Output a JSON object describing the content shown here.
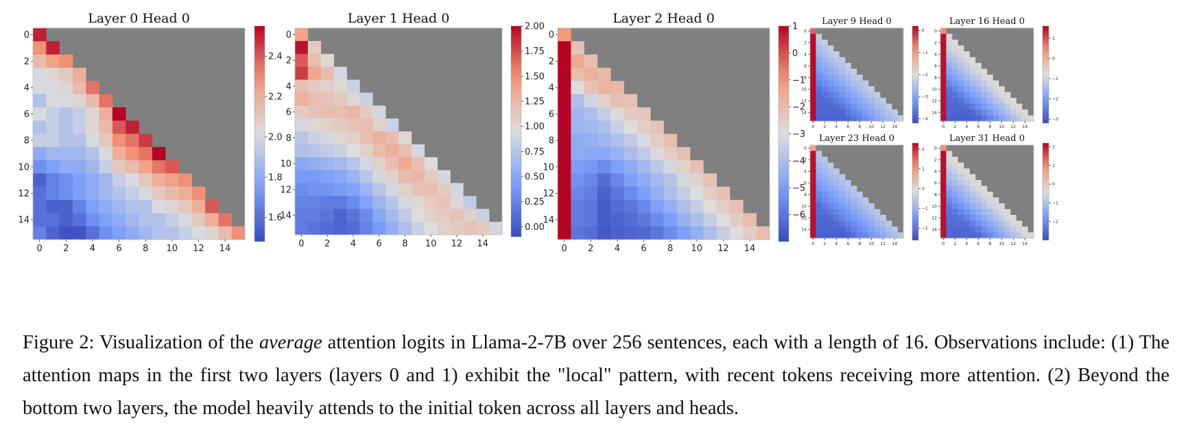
{
  "figure": {
    "caption_prefix": "Figure 2: Visualization of the ",
    "caption_emph": "average",
    "caption_rest": " attention logits in Llama-2-7B over 256 sentences, each with a length of 16. Observations include: (1) The attention maps in the first two layers (layers 0 and 1) exhibit the \"local\" pattern, with recent tokens receiving more attention. (2) Beyond the bottom two layers, the model heavily attends to the initial token across all layers and heads."
  },
  "chart_data": [
    {
      "type": "heatmap",
      "title": "Layer 0 Head 0",
      "x_ticks": [
        "0",
        "2",
        "4",
        "6",
        "8",
        "10",
        "12",
        "14"
      ],
      "y_ticks": [
        "0",
        "2",
        "4",
        "6",
        "8",
        "10",
        "12",
        "14"
      ],
      "colorbar": {
        "min": 1.48,
        "max": 2.55,
        "ticks": [
          1.6,
          1.8,
          2.0,
          2.2,
          2.4
        ],
        "tick_labels": [
          "1.6",
          "1.8",
          "2.0",
          "2.2",
          "2.4"
        ]
      },
      "masked_color": "#808080",
      "values": [
        [
          2.5
        ],
        [
          2.3,
          2.5
        ],
        [
          2.15,
          2.25,
          2.3
        ],
        [
          2.0,
          2.05,
          2.1,
          2.2
        ],
        [
          2.0,
          2.0,
          2.05,
          2.15,
          2.35
        ],
        [
          1.9,
          2.0,
          2.0,
          2.05,
          2.15,
          2.35
        ],
        [
          2.0,
          1.95,
          1.9,
          1.95,
          2.05,
          2.2,
          2.55
        ],
        [
          1.9,
          1.95,
          1.9,
          1.95,
          2.05,
          2.15,
          2.4,
          2.5
        ],
        [
          1.95,
          1.95,
          1.9,
          1.9,
          2.0,
          2.1,
          2.3,
          2.35,
          2.45
        ],
        [
          1.8,
          1.85,
          1.85,
          1.85,
          1.9,
          2.0,
          2.2,
          2.3,
          2.35,
          2.55
        ],
        [
          1.7,
          1.75,
          1.8,
          1.8,
          1.85,
          1.95,
          2.1,
          2.15,
          2.25,
          2.35,
          2.4
        ],
        [
          1.55,
          1.65,
          1.7,
          1.75,
          1.8,
          1.85,
          1.95,
          2.0,
          2.1,
          2.2,
          2.25,
          2.3
        ],
        [
          1.6,
          1.65,
          1.7,
          1.75,
          1.8,
          1.85,
          1.9,
          1.95,
          2.0,
          2.1,
          2.15,
          2.2,
          2.3
        ],
        [
          1.6,
          1.55,
          1.55,
          1.65,
          1.75,
          1.8,
          1.85,
          1.9,
          1.9,
          2.0,
          2.05,
          2.1,
          2.2,
          2.4
        ],
        [
          1.6,
          1.6,
          1.55,
          1.6,
          1.7,
          1.75,
          1.8,
          1.85,
          1.9,
          1.9,
          1.95,
          2.0,
          2.1,
          2.2,
          2.35
        ],
        [
          1.65,
          1.55,
          1.5,
          1.5,
          1.6,
          1.7,
          1.75,
          1.8,
          1.85,
          1.9,
          1.9,
          1.95,
          2.0,
          2.05,
          2.15,
          2.3
        ]
      ]
    },
    {
      "type": "heatmap",
      "title": "Layer 1 Head 0",
      "x_ticks": [
        "0",
        "2",
        "4",
        "6",
        "8",
        "10",
        "12",
        "14"
      ],
      "y_ticks": [
        "0",
        "2",
        "4",
        "6",
        "8",
        "10",
        "12",
        "14"
      ],
      "colorbar": {
        "min": -0.1,
        "max": 2.0,
        "ticks": [
          0.0,
          0.25,
          0.5,
          0.75,
          1.0,
          1.25,
          1.5,
          1.75,
          2.0
        ],
        "tick_labels": [
          "0.00",
          "0.25",
          "0.50",
          "0.75",
          "1.00",
          "1.25",
          "1.50",
          "1.75",
          "2.00"
        ]
      },
      "masked_color": "#808080",
      "values": [
        [
          1.4
        ],
        [
          1.95,
          1.1
        ],
        [
          1.7,
          1.2,
          1.0
        ],
        [
          1.8,
          1.4,
          1.2,
          0.9
        ],
        [
          1.2,
          1.1,
          1.05,
          1.0,
          0.85
        ],
        [
          1.3,
          1.2,
          1.15,
          1.1,
          1.0,
          0.85
        ],
        [
          1.1,
          1.15,
          1.2,
          1.2,
          1.25,
          1.1,
          0.9
        ],
        [
          0.9,
          1.0,
          1.05,
          1.1,
          1.15,
          1.2,
          1.05,
          0.85
        ],
        [
          0.75,
          0.85,
          0.9,
          1.0,
          1.05,
          1.2,
          1.3,
          1.2,
          1.0
        ],
        [
          0.7,
          0.75,
          0.8,
          0.85,
          0.95,
          1.05,
          1.2,
          1.3,
          1.2,
          0.9
        ],
        [
          0.5,
          0.55,
          0.6,
          0.65,
          0.75,
          0.9,
          1.05,
          1.2,
          1.35,
          1.2,
          0.95
        ],
        [
          0.4,
          0.4,
          0.45,
          0.5,
          0.6,
          0.75,
          0.9,
          1.05,
          1.2,
          1.25,
          1.1,
          0.9
        ],
        [
          0.3,
          0.35,
          0.35,
          0.4,
          0.45,
          0.6,
          0.75,
          0.9,
          1.05,
          1.15,
          1.2,
          1.1,
          0.9
        ],
        [
          0.25,
          0.25,
          0.2,
          0.2,
          0.3,
          0.45,
          0.6,
          0.75,
          0.9,
          1.0,
          1.1,
          1.15,
          1.0,
          0.8
        ],
        [
          0.2,
          0.2,
          0.15,
          0.05,
          0.15,
          0.3,
          0.5,
          0.65,
          0.8,
          0.95,
          1.05,
          1.1,
          1.15,
          1.05,
          0.85
        ],
        [
          0.2,
          0.15,
          0.1,
          0.05,
          0.1,
          0.25,
          0.4,
          0.55,
          0.7,
          0.85,
          0.95,
          1.05,
          1.1,
          1.15,
          1.1,
          0.9
        ]
      ]
    },
    {
      "type": "heatmap",
      "title": "Layer 2 Head 0",
      "x_ticks": [
        "0",
        "2",
        "4",
        "6",
        "8",
        "10",
        "12",
        "14"
      ],
      "y_ticks": [
        "0",
        "2",
        "4",
        "6",
        "8",
        "10",
        "12",
        "14"
      ],
      "colorbar": {
        "min": -7.0,
        "max": 1.0,
        "ticks": [
          1,
          0,
          -1,
          -2,
          -3,
          -4,
          -5,
          -6
        ],
        "tick_labels": [
          "1",
          "0",
          "−1",
          "−2",
          "−3",
          "−4",
          "−5",
          "−6"
        ]
      },
      "masked_color": "#808080",
      "values": [
        [
          -1.0
        ],
        [
          1.0,
          -2.2
        ],
        [
          1.0,
          -1.5,
          -2.0
        ],
        [
          1.0,
          -2.0,
          -1.7,
          -1.9
        ],
        [
          1.0,
          -3.0,
          -2.2,
          -1.8,
          -1.9
        ],
        [
          1.0,
          -4.0,
          -3.3,
          -2.6,
          -2.1,
          -2.2
        ],
        [
          1.0,
          -4.3,
          -4.0,
          -3.5,
          -2.9,
          -2.4,
          -2.3
        ],
        [
          1.0,
          -4.3,
          -4.2,
          -4.0,
          -3.5,
          -3.0,
          -2.5,
          -2.2
        ],
        [
          1.0,
          -4.6,
          -4.5,
          -4.3,
          -4.0,
          -3.6,
          -3.1,
          -2.5,
          -2.0
        ],
        [
          1.0,
          -4.6,
          -4.7,
          -4.7,
          -4.4,
          -4.0,
          -3.6,
          -3.1,
          -2.5,
          -2.1
        ],
        [
          1.0,
          -5.0,
          -5.2,
          -5.5,
          -5.0,
          -4.6,
          -4.2,
          -3.7,
          -3.2,
          -2.6,
          -2.1
        ],
        [
          1.0,
          -5.3,
          -5.6,
          -6.2,
          -5.6,
          -5.0,
          -4.6,
          -4.2,
          -3.8,
          -3.2,
          -2.7,
          -2.2
        ],
        [
          1.0,
          -5.6,
          -5.8,
          -6.5,
          -6.0,
          -5.5,
          -5.0,
          -4.5,
          -4.0,
          -3.5,
          -3.0,
          -2.5,
          -2.1
        ],
        [
          1.0,
          -5.8,
          -6.0,
          -6.6,
          -6.2,
          -6.0,
          -5.6,
          -5.0,
          -4.5,
          -4.0,
          -3.5,
          -3.0,
          -2.5,
          -2.1
        ],
        [
          1.0,
          -5.8,
          -6.0,
          -6.6,
          -6.4,
          -6.2,
          -6.0,
          -5.5,
          -5.0,
          -4.5,
          -4.0,
          -3.5,
          -3.0,
          -2.5,
          -2.0
        ],
        [
          1.0,
          -6.0,
          -6.2,
          -6.7,
          -6.5,
          -6.4,
          -6.3,
          -6.0,
          -5.5,
          -5.0,
          -4.5,
          -4.0,
          -3.5,
          -3.0,
          -2.5,
          -2.0
        ]
      ]
    },
    {
      "type": "heatmap",
      "title": "Layer 9 Head 0",
      "x_ticks": [
        "0",
        "2",
        "4",
        "6",
        "8",
        "10",
        "12",
        "14"
      ],
      "y_ticks": [
        "0",
        "2",
        "4",
        "6",
        "8",
        "10",
        "12",
        "14"
      ],
      "colorbar": {
        "min": -4.2,
        "max": 0.2,
        "ticks": [
          0,
          -1,
          -2,
          -3,
          -4
        ],
        "tick_labels": [
          "0",
          "−1",
          "−2",
          "−3",
          "−4"
        ]
      },
      "masked_color": "#808080",
      "pattern": {
        "first_col": 0.15,
        "first_cell": -0.5,
        "diag_value": -2.3,
        "far_value": -3.9
      }
    },
    {
      "type": "heatmap",
      "title": "Layer 16 Head 0",
      "x_ticks": [
        "0",
        "2",
        "4",
        "6",
        "8",
        "10",
        "12",
        "14"
      ],
      "y_ticks": [
        "0",
        "2",
        "4",
        "6",
        "8",
        "10",
        "12",
        "14"
      ],
      "colorbar": {
        "min": -3.2,
        "max": 1.6,
        "ticks": [
          1,
          0,
          -1,
          -2,
          -3
        ],
        "tick_labels": [
          "1",
          "0",
          "−1",
          "−2",
          "−3"
        ]
      },
      "masked_color": "#808080",
      "pattern": {
        "first_col": 1.5,
        "first_cell": 0.5,
        "diag_value": -0.7,
        "far_value": -2.9
      }
    },
    {
      "type": "heatmap",
      "title": "Layer 23 Head 0",
      "x_ticks": [
        "0",
        "2",
        "4",
        "6",
        "8",
        "10",
        "12",
        "14"
      ],
      "y_ticks": [
        "0",
        "2",
        "4",
        "6",
        "8",
        "10",
        "12",
        "14"
      ],
      "colorbar": {
        "min": -2.6,
        "max": 2.3,
        "ticks": [
          2,
          1,
          0,
          -1,
          -2
        ],
        "tick_labels": [
          "2",
          "1",
          "0",
          "−1",
          "−2"
        ]
      },
      "masked_color": "#808080",
      "pattern": {
        "first_col": 2.2,
        "first_cell": 1.0,
        "diag_value": -0.6,
        "far_value": -2.3
      }
    },
    {
      "type": "heatmap",
      "title": "Layer 31 Head 0",
      "x_ticks": [
        "0",
        "2",
        "4",
        "6",
        "8",
        "10",
        "12",
        "14"
      ],
      "y_ticks": [
        "0",
        "2",
        "4",
        "6",
        "8",
        "10",
        "12",
        "14"
      ],
      "colorbar": {
        "min": -3.0,
        "max": 2.2,
        "ticks": [
          2,
          1,
          0,
          -1,
          -2
        ],
        "tick_labels": [
          "2",
          "1",
          "0",
          "−1",
          "−2"
        ]
      },
      "masked_color": "#808080",
      "pattern": {
        "first_col": 2.1,
        "first_cell": 1.0,
        "diag_value": -0.3,
        "far_value": -2.6
      }
    }
  ]
}
